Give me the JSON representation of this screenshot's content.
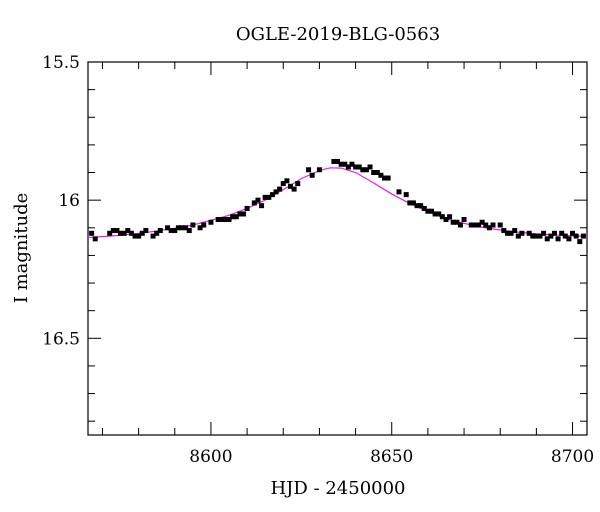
{
  "chart_data": {
    "type": "scatter",
    "title": "OGLE-2019-BLG-0563",
    "xlabel": "HJD - 2450000",
    "ylabel": "I magnitude",
    "xlim": [
      8566,
      8704
    ],
    "ylim": [
      16.85,
      15.5
    ],
    "y_inverted": true,
    "x_ticks": [
      {
        "value": 8600,
        "label": "8600"
      },
      {
        "value": 8650,
        "label": "8650"
      },
      {
        "value": 8700,
        "label": "8700"
      }
    ],
    "y_ticks": [
      {
        "value": 15.5,
        "label": "15.5"
      },
      {
        "value": 16.0,
        "label": "16"
      },
      {
        "value": 16.5,
        "label": "16.5"
      }
    ],
    "grid": false,
    "legend": "none",
    "colors": {
      "points": "#000000",
      "model": "#e61ee6"
    },
    "series": [
      {
        "kind": "points",
        "x": [
          8567,
          8568,
          8572,
          8573,
          8574,
          8575,
          8576,
          8577,
          8578,
          8579,
          8580,
          8581,
          8582,
          8584,
          8585,
          8586,
          8588,
          8589,
          8590,
          8591,
          8592,
          8593,
          8594,
          8595,
          8597,
          8598,
          8600,
          8602,
          8603,
          8604,
          8605,
          8606,
          8607,
          8608,
          8609,
          8610,
          8612,
          8613,
          8614,
          8615,
          8616,
          8617,
          8618,
          8619,
          8620,
          8621,
          8622,
          8623,
          8624,
          8627,
          8628,
          8630,
          8634,
          8635,
          8636,
          8637,
          8638,
          8639,
          8640,
          8641,
          8642,
          8643,
          8644,
          8645,
          8646,
          8647,
          8648,
          8649,
          8652,
          8654,
          8655,
          8656,
          8657,
          8658,
          8659,
          8660,
          8661,
          8662,
          8663,
          8664,
          8665,
          8666,
          8667,
          8668,
          8669,
          8670,
          8672,
          8673,
          8674,
          8675,
          8676,
          8677,
          8678,
          8680,
          8681,
          8682,
          8683,
          8684,
          8685,
          8686,
          8688,
          8689,
          8690,
          8691,
          8692,
          8693,
          8694,
          8695,
          8696,
          8697,
          8698,
          8699,
          8700,
          8701,
          8702,
          8703
        ],
        "y": [
          16.12,
          16.14,
          16.12,
          16.11,
          16.11,
          16.12,
          16.12,
          16.11,
          16.12,
          16.13,
          16.13,
          16.12,
          16.11,
          16.13,
          16.12,
          16.11,
          16.1,
          16.11,
          16.11,
          16.1,
          16.1,
          16.1,
          16.11,
          16.09,
          16.1,
          16.09,
          16.08,
          16.07,
          16.07,
          16.07,
          16.07,
          16.06,
          16.06,
          16.05,
          16.05,
          16.03,
          16.01,
          16.0,
          16.02,
          15.99,
          15.99,
          15.98,
          15.97,
          15.96,
          15.94,
          15.93,
          15.95,
          15.96,
          15.94,
          15.89,
          15.91,
          15.89,
          15.86,
          15.86,
          15.87,
          15.87,
          15.88,
          15.87,
          15.88,
          15.88,
          15.89,
          15.89,
          15.88,
          15.9,
          15.9,
          15.91,
          15.92,
          15.92,
          15.97,
          15.98,
          16.01,
          16.01,
          16.02,
          16.02,
          16.03,
          16.04,
          16.04,
          16.05,
          16.05,
          16.06,
          16.07,
          16.06,
          16.08,
          16.08,
          16.09,
          16.07,
          16.09,
          16.09,
          16.09,
          16.08,
          16.09,
          16.1,
          16.09,
          16.09,
          16.11,
          16.12,
          16.12,
          16.11,
          16.13,
          16.12,
          16.12,
          16.13,
          16.13,
          16.13,
          16.12,
          16.14,
          16.13,
          16.12,
          16.14,
          16.12,
          16.13,
          16.14,
          16.12,
          16.13,
          16.15,
          16.13
        ]
      },
      {
        "kind": "model",
        "x": [
          8566,
          8570,
          8575,
          8580,
          8585,
          8590,
          8595,
          8600,
          8605,
          8610,
          8615,
          8620,
          8625,
          8630,
          8633,
          8636,
          8640,
          8645,
          8650,
          8655,
          8660,
          8665,
          8670,
          8675,
          8680,
          8685,
          8690,
          8695,
          8700,
          8704
        ],
        "y": [
          16.135,
          16.132,
          16.127,
          16.12,
          16.112,
          16.102,
          16.09,
          16.073,
          16.055,
          16.03,
          16.0,
          15.962,
          15.922,
          15.893,
          15.883,
          15.884,
          15.9,
          15.938,
          15.978,
          16.012,
          16.042,
          16.067,
          16.084,
          16.098,
          16.108,
          16.116,
          16.122,
          16.126,
          16.129,
          16.131
        ]
      }
    ]
  }
}
